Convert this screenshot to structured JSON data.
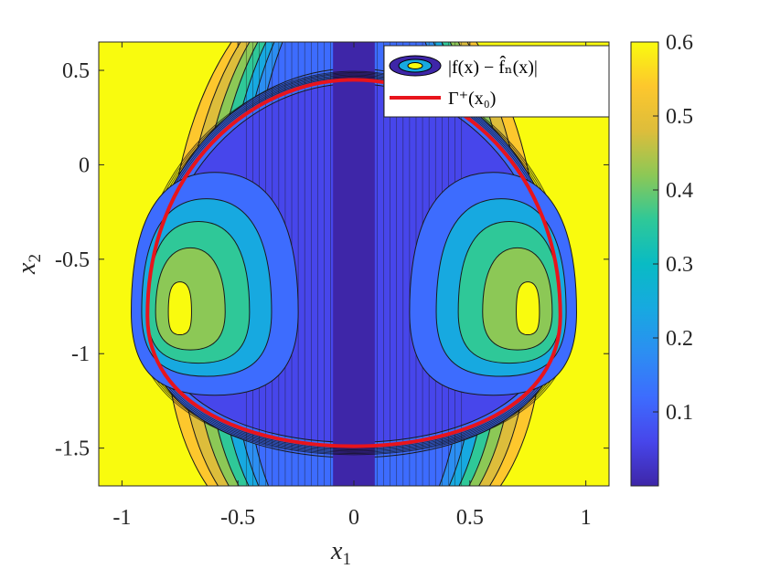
{
  "chart_data": {
    "type": "contour",
    "title": "",
    "xlabel": "x",
    "xlabel_sub": "1",
    "ylabel": "x",
    "ylabel_sub": "2",
    "xlim": [
      -1.1,
      1.1
    ],
    "ylim": [
      -1.7,
      0.65
    ],
    "xticks": [
      {
        "value": -1,
        "label": "-1"
      },
      {
        "value": -0.5,
        "label": "-0.5"
      },
      {
        "value": 0,
        "label": "0"
      },
      {
        "value": 0.5,
        "label": "0.5"
      },
      {
        "value": 1,
        "label": "1"
      }
    ],
    "yticks": [
      {
        "value": 0.5,
        "label": "0.5"
      },
      {
        "value": 0,
        "label": "0"
      },
      {
        "value": -0.5,
        "label": "-0.5"
      },
      {
        "value": -1,
        "label": "-1"
      },
      {
        "value": -1.5,
        "label": "-1.5"
      }
    ],
    "colorbar": {
      "range": [
        0,
        0.6
      ],
      "ticks": [
        {
          "value": 0.6,
          "label": "0.6"
        },
        {
          "value": 0.5,
          "label": "0.5"
        },
        {
          "value": 0.4,
          "label": "0.4"
        },
        {
          "value": 0.3,
          "label": "0.3"
        },
        {
          "value": 0.2,
          "label": "0.2"
        },
        {
          "value": 0.1,
          "label": "0.1"
        }
      ],
      "colormap": "parula"
    },
    "legend": {
      "placement": "top-right",
      "entries": [
        {
          "name": "|f(x) − f̂ₙ(x)|",
          "kind": "filled contour"
        },
        {
          "name": "Γ⁺(x₀)",
          "kind": "line",
          "color": "#e8141c"
        }
      ]
    },
    "curve": {
      "name": "Γ⁺(x₀)",
      "color": "#e8141c",
      "x_extent": [
        -0.89,
        0.89
      ],
      "y_top": 0.45,
      "y_bottom": -1.49,
      "y_at_widest": -0.8
    },
    "colors": {
      "yellow": "#f9fb0e",
      "dark_blue": "#3e26a8",
      "red": "#e8141c"
    }
  }
}
